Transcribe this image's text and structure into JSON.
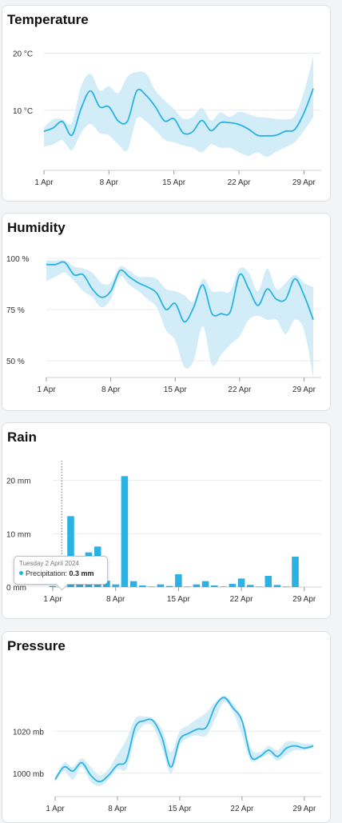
{
  "colors": {
    "line": "#2ab2e4",
    "band": "#cdeaf7",
    "bar": "#2ab2e4",
    "grid": "#e9ebee"
  },
  "x_ticks": [
    "1 Apr",
    "8 Apr",
    "15 Apr",
    "22 Apr",
    "29 Apr"
  ],
  "temperature": {
    "title": "Temperature",
    "y_ticks": [
      "20 °C",
      "10 °C"
    ],
    "chart_data": {
      "type": "area",
      "title": "Temperature",
      "unit": "°C",
      "x": [
        1,
        2,
        3,
        4,
        5,
        6,
        7,
        8,
        9,
        10,
        11,
        12,
        13,
        14,
        15,
        16,
        17,
        18,
        19,
        20,
        21,
        22,
        23,
        24,
        25,
        26,
        27,
        28,
        29,
        30
      ],
      "values": [
        6.3,
        6.9,
        8.0,
        5.6,
        10.3,
        13.4,
        10.6,
        10.6,
        8.1,
        8.1,
        13.4,
        12.6,
        10.6,
        8.1,
        8.5,
        6.0,
        6.2,
        8.2,
        6.4,
        7.8,
        7.8,
        7.5,
        6.7,
        5.6,
        5.5,
        5.6,
        6.3,
        6.6,
        9.5,
        13.8
      ],
      "lower": [
        3.6,
        4.0,
        4.7,
        3.0,
        6.0,
        7.6,
        6.0,
        5.6,
        4.0,
        3.0,
        8.5,
        8.0,
        6.5,
        4.8,
        4.4,
        3.8,
        3.4,
        2.6,
        4.0,
        3.4,
        3.4,
        2.6,
        2.0,
        2.6,
        1.8,
        2.7,
        3.5,
        4.4,
        6.4,
        8.8
      ],
      "upper": [
        7.0,
        8.4,
        8.4,
        7.8,
        14.2,
        16.4,
        13.5,
        14.2,
        13.0,
        15.9,
        16.7,
        16.4,
        13.5,
        11.7,
        10.2,
        8.5,
        8.8,
        10.4,
        8.2,
        9.6,
        8.8,
        9.7,
        9.3,
        8.8,
        8.7,
        8.5,
        8.4,
        9.0,
        13.2,
        19.5
      ],
      "ylim": [
        0,
        20.5
      ],
      "x_tick_values": [
        1,
        8,
        15,
        22,
        29
      ],
      "y_tick_values": [
        20,
        10
      ]
    }
  },
  "humidity": {
    "title": "Humidity",
    "y_ticks": [
      "100 %",
      "75 %",
      "50 %"
    ],
    "chart_data": {
      "type": "area",
      "title": "Humidity",
      "unit": "%",
      "x": [
        1,
        2,
        3,
        4,
        5,
        6,
        7,
        8,
        9,
        10,
        11,
        12,
        13,
        14,
        15,
        16,
        17,
        18,
        19,
        20,
        21,
        22,
        23,
        24,
        25,
        26,
        27,
        28,
        29,
        30
      ],
      "values": [
        97,
        97,
        98,
        92,
        92,
        85,
        81,
        84,
        94,
        91,
        88,
        86,
        83,
        75,
        78,
        69,
        76,
        87,
        73,
        73,
        74,
        92,
        85,
        77,
        85,
        80,
        80,
        90,
        82,
        70
      ],
      "lower": [
        89,
        91,
        93,
        89,
        84,
        81,
        76,
        80,
        91,
        87,
        84,
        80,
        76,
        65,
        60,
        47,
        50,
        67,
        48,
        53,
        58,
        62,
        70,
        72,
        70,
        70,
        63,
        70,
        65,
        42
      ],
      "upper": [
        99,
        99,
        99,
        96,
        95,
        93,
        88,
        88,
        96,
        94,
        91,
        91,
        90,
        85,
        84,
        82,
        79,
        90,
        84,
        84,
        84,
        95,
        93,
        84,
        95,
        85,
        88,
        92,
        88,
        86
      ],
      "ylim": [
        43,
        100
      ],
      "x_tick_values": [
        1,
        8,
        15,
        22,
        29
      ],
      "y_tick_values": [
        100,
        75,
        50
      ]
    }
  },
  "rain": {
    "title": "Rain",
    "y_ticks": [
      "20 mm",
      "10 mm",
      "0 mm"
    ],
    "tooltip": {
      "date": "Tuesday 2 April 2024",
      "label": "Precipitation:",
      "value": "0.3 mm"
    },
    "chart_data": {
      "type": "bar",
      "title": "Rain",
      "unit": "mm",
      "x": [
        1,
        2,
        3,
        4,
        5,
        6,
        7,
        8,
        9,
        10,
        11,
        12,
        13,
        14,
        15,
        16,
        17,
        18,
        19,
        20,
        21,
        22,
        23,
        24,
        25,
        26,
        27,
        28,
        29,
        30
      ],
      "values": [
        0.2,
        0.3,
        13.3,
        0.5,
        6.5,
        7.6,
        1.2,
        0.5,
        20.8,
        1.1,
        0.3,
        0.1,
        0.5,
        0.2,
        2.4,
        0.1,
        0.5,
        1.1,
        0.3,
        0.1,
        0.6,
        1.6,
        0.4,
        0.1,
        2.1,
        0.4,
        0.1,
        5.7,
        0,
        0
      ],
      "ylim": [
        0,
        22.5
      ],
      "x_tick_values": [
        1,
        8,
        15,
        22,
        29
      ],
      "y_tick_values": [
        20,
        10,
        0
      ],
      "highlighted_x": 2
    }
  },
  "pressure": {
    "title": "Pressure",
    "y_ticks": [
      "1020 mb",
      "1000 mb"
    ],
    "chart_data": {
      "type": "area",
      "title": "Pressure",
      "unit": "mb",
      "x": [
        1,
        2,
        3,
        4,
        5,
        6,
        7,
        8,
        9,
        10,
        11,
        12,
        13,
        14,
        15,
        16,
        17,
        18,
        19,
        20,
        21,
        22,
        23,
        24,
        25,
        26,
        27,
        28,
        29,
        30
      ],
      "values": [
        997,
        1003,
        1001,
        1005,
        999,
        996,
        999,
        1004,
        1006,
        1022,
        1025,
        1025,
        1017,
        1003,
        1016,
        1019,
        1021,
        1022,
        1032,
        1036,
        1031,
        1025,
        1008,
        1008,
        1011,
        1008,
        1012,
        1013,
        1012,
        1013
      ],
      "lower": [
        996,
        1001,
        997,
        1003,
        996,
        994,
        997,
        1002,
        1002,
        1017,
        1023,
        1022,
        1012,
        1000,
        1013,
        1017,
        1018,
        1018,
        1026,
        1034,
        1029,
        1018,
        1006,
        1007,
        1009,
        1006,
        1009,
        1011,
        1011,
        1012
      ],
      "upper": [
        998,
        1005,
        1003,
        1007,
        1003,
        999,
        1002,
        1009,
        1016,
        1026,
        1027,
        1026,
        1021,
        1010,
        1020,
        1023,
        1026,
        1029,
        1034,
        1037,
        1033,
        1026,
        1012,
        1010,
        1013,
        1011,
        1015,
        1015,
        1014,
        1014
      ],
      "ylim": [
        990,
        1046
      ],
      "x_tick_values": [
        1,
        8,
        15,
        22,
        29
      ],
      "y_tick_values": [
        1020,
        1000
      ]
    }
  }
}
